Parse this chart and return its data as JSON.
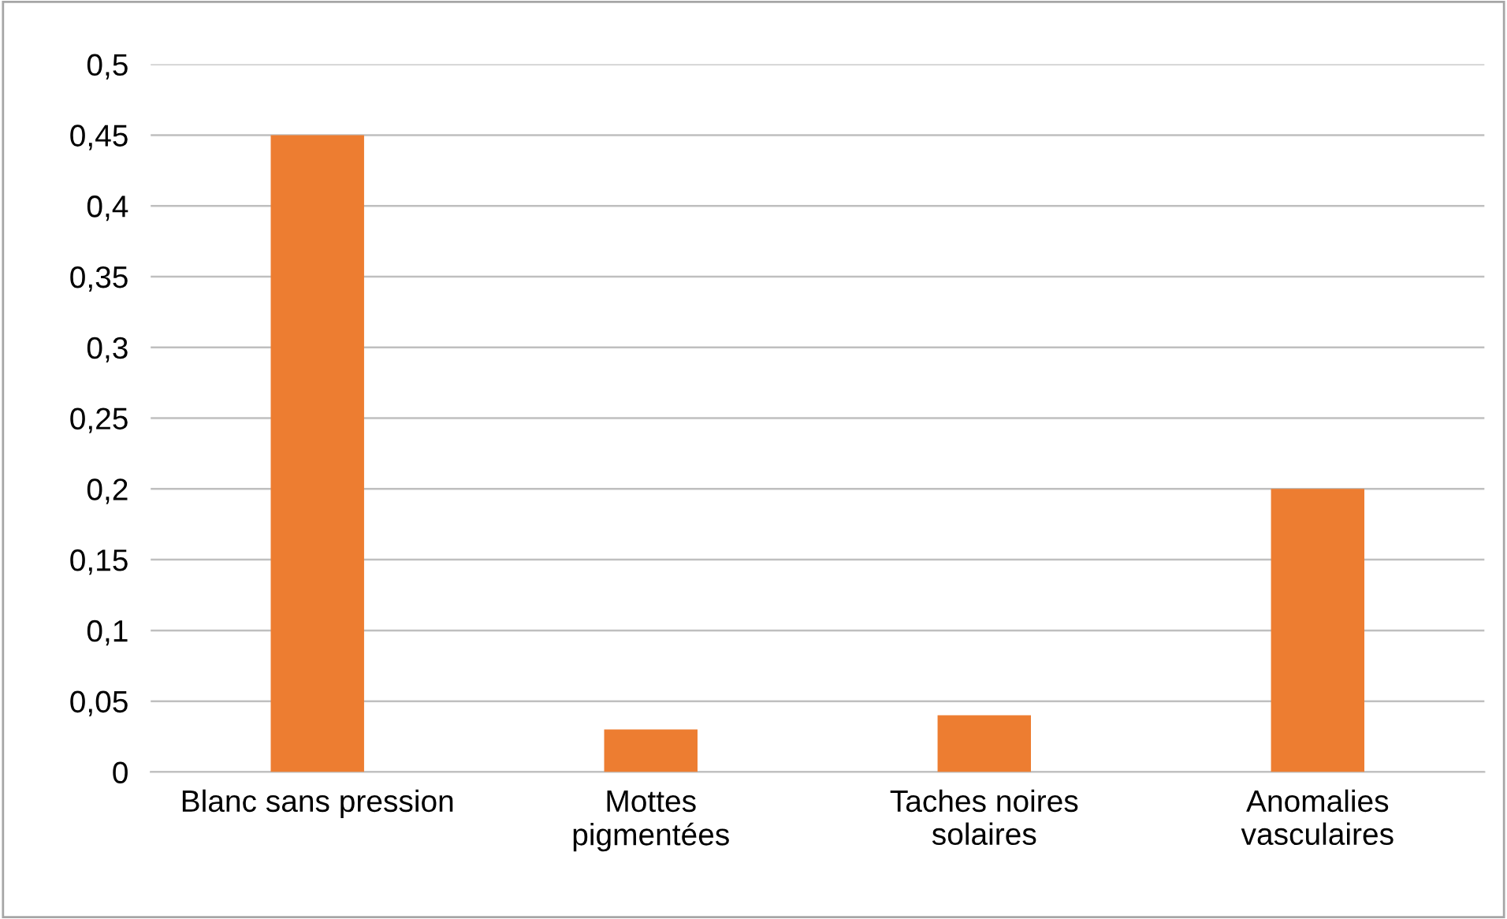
{
  "chart_data": {
    "type": "bar",
    "categories": [
      "Blanc sans pression",
      "Mottes\npigmentées",
      "Taches noires\nsolaires",
      "Anomalies\nvasculaires"
    ],
    "values": [
      0.45,
      0.03,
      0.04,
      0.2
    ],
    "color": "#ed7d31",
    "ylim": [
      0,
      0.5
    ],
    "yticks": [
      0,
      {
        "value": 0.05,
        "label": "0,05"
      },
      {
        "value": 0.1,
        "label": "0,1"
      },
      {
        "value": 0.15,
        "label": "0,15"
      },
      {
        "value": 0.2,
        "label": "0,2"
      },
      {
        "value": 0.25,
        "label": "0,25"
      },
      {
        "value": 0.3,
        "label": "0,3"
      },
      {
        "value": 0.35,
        "label": "0,35"
      },
      {
        "value": 0.4,
        "label": "0,4"
      },
      {
        "value": 0.45,
        "label": "0,45"
      },
      {
        "value": 0.5,
        "label": "0,5"
      }
    ],
    "grid": "y"
  }
}
